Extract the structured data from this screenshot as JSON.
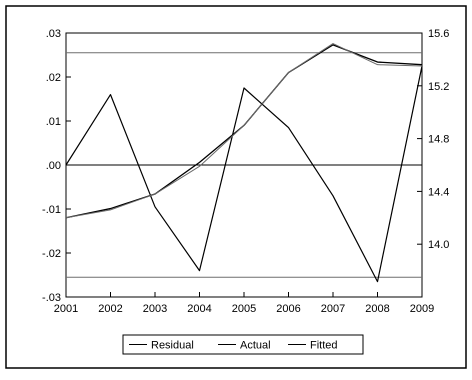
{
  "chart_data": {
    "type": "line",
    "x": [
      2001,
      2002,
      2003,
      2004,
      2005,
      2006,
      2007,
      2008,
      2009
    ],
    "x_tick_labels": [
      "2001",
      "2002",
      "2003",
      "2004",
      "2005",
      "2006",
      "2007",
      "2008",
      "2009"
    ],
    "left_axis": {
      "ylim": [
        -0.03,
        0.03
      ],
      "tick_values": [
        -0.03,
        -0.02,
        -0.01,
        0.0,
        0.01,
        0.02,
        0.03
      ],
      "tick_labels": [
        "-.03",
        "-.02",
        "-.01",
        ".00",
        ".01",
        ".02",
        ".03"
      ],
      "zero_line": 0.0,
      "band_lines": [
        -0.0255,
        0.0255
      ]
    },
    "right_axis": {
      "ylim": [
        13.6,
        15.6
      ],
      "tick_values": [
        14.0,
        14.4,
        14.8,
        15.2,
        15.6
      ],
      "tick_labels": [
        "14.0",
        "14.4",
        "14.8",
        "15.2",
        "15.6"
      ]
    },
    "series": [
      {
        "name": "Residual",
        "axis": "left",
        "values": [
          0.0,
          0.016,
          -0.0095,
          -0.024,
          0.0175,
          0.0085,
          -0.007,
          -0.0265,
          0.0225
        ]
      },
      {
        "name": "Actual",
        "axis": "right",
        "values": [
          14.2,
          14.27,
          14.38,
          14.62,
          14.9,
          15.3,
          15.51,
          15.38,
          15.36
        ]
      },
      {
        "name": "Fitted",
        "axis": "right",
        "values": [
          14.2,
          14.26,
          14.38,
          14.59,
          14.9,
          15.3,
          15.52,
          15.36,
          15.35
        ]
      }
    ],
    "legend": [
      "Residual",
      "Actual",
      "Fitted"
    ],
    "legend_position": "bottom-center",
    "grid": false
  }
}
